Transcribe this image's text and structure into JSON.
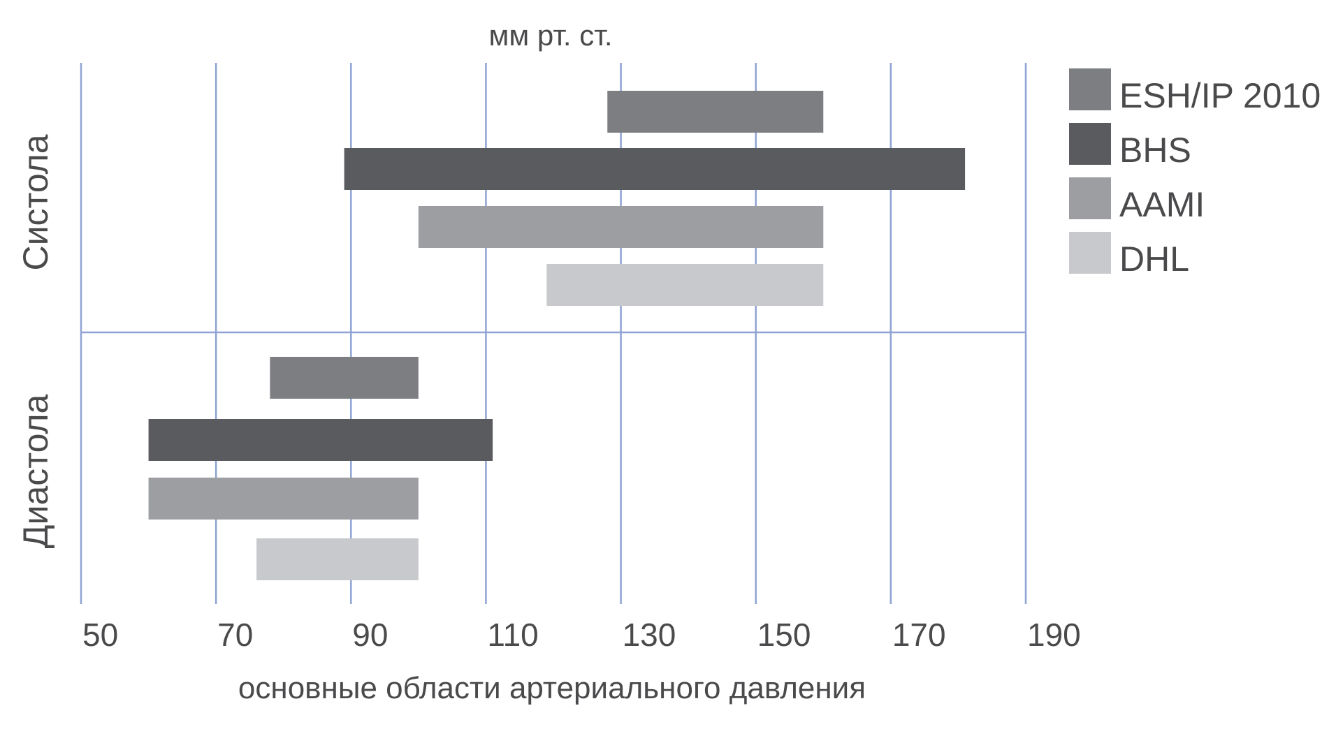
{
  "chart_data": {
    "type": "bar",
    "orientation": "horizontal-range",
    "unit_label": "мм рт. ст.",
    "xlabel": "основные области артериального давления",
    "xlim": [
      50,
      190
    ],
    "xticks": [
      50,
      70,
      90,
      110,
      130,
      150,
      170,
      190
    ],
    "xtick_labels": [
      "50",
      "70",
      "90",
      "110",
      "130",
      "150",
      "170",
      "190"
    ],
    "grid": true,
    "legend_position": "right",
    "groups": [
      "Систола",
      "Диастола"
    ],
    "series": [
      {
        "name": "ESH/IP 2010",
        "color": "#7d7e82",
        "ranges": [
          [
            128,
            160
          ],
          [
            78,
            100
          ]
        ]
      },
      {
        "name": "BHS",
        "color": "#5a5b5e",
        "ranges": [
          [
            89,
            181
          ],
          [
            60,
            111
          ]
        ]
      },
      {
        "name": "AAMI",
        "color": "#9d9ea2",
        "ranges": [
          [
            100,
            160
          ],
          [
            60,
            100
          ]
        ]
      },
      {
        "name": "DHL",
        "color": "#c8c9cc",
        "ranges": [
          [
            119,
            160
          ],
          [
            76,
            100
          ]
        ]
      }
    ],
    "grid_color": "#8ea3d3"
  }
}
